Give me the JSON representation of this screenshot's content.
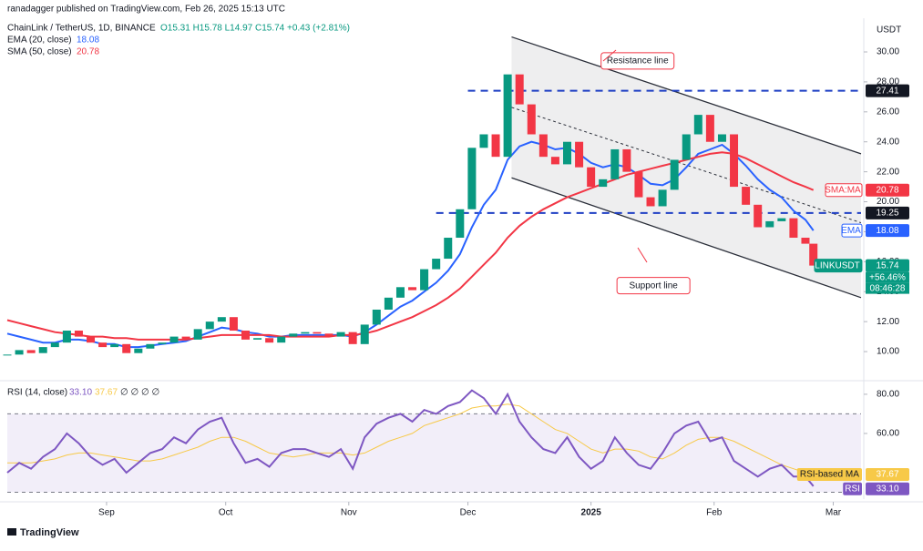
{
  "header": {
    "author": "ranadagger published on TradingView.com, Feb 26, 2025 15:13 UTC",
    "logo": "TradingView"
  },
  "chart_data": [
    {
      "type": "candlestick",
      "symbol": "ChainLink / TetherUS, 1D, BINANCE",
      "ohlc_text": "O15.31 H15.78 L14.97 C15.74 +0.43 (+2.81%)",
      "axis_title": "USDT",
      "x": [
        0,
        3,
        6,
        9,
        12,
        15,
        18,
        21,
        24,
        27,
        30,
        33,
        36,
        39,
        42,
        45,
        48,
        51,
        54,
        57,
        60,
        63,
        66,
        69,
        72,
        75,
        78,
        81,
        84,
        87,
        90,
        93,
        96,
        99,
        102,
        105,
        108,
        111,
        114,
        117,
        120,
        123,
        126,
        129,
        132,
        135,
        138,
        141,
        144,
        147,
        150,
        153,
        156,
        159,
        162,
        165,
        168,
        171,
        174,
        177,
        180,
        183,
        186,
        189,
        192,
        195,
        198,
        201,
        203
      ],
      "xlim": [
        0,
        215
      ],
      "xticks": [
        {
          "value": 25,
          "label": "Sep"
        },
        {
          "value": 55,
          "label": "Oct"
        },
        {
          "value": 86,
          "label": "Nov"
        },
        {
          "value": 116,
          "label": "Dec"
        },
        {
          "value": 147,
          "label": "2025"
        },
        {
          "value": 178,
          "label": "Feb"
        },
        {
          "value": 208,
          "label": "Mar"
        }
      ],
      "ylim": [
        8.24,
        32.25
      ],
      "yticks": [
        {
          "value": 10,
          "label": "10.00"
        },
        {
          "value": 12,
          "label": "12.00"
        },
        {
          "value": 14,
          "label": "14.00"
        },
        {
          "value": 16,
          "label": "16.00"
        },
        {
          "value": 18,
          "label": "18.00"
        },
        {
          "value": 20,
          "label": "20.00"
        },
        {
          "value": 22,
          "label": "22.00"
        },
        {
          "value": 24,
          "label": "24.00"
        },
        {
          "value": 26,
          "label": "26.00"
        },
        {
          "value": 28,
          "label": "28.00"
        },
        {
          "value": 30,
          "label": "30.00"
        }
      ],
      "up_color": "#089981",
      "down_color": "#f23645",
      "closes": [
        9.8,
        10.1,
        9.9,
        10.3,
        10.6,
        11.4,
        11.0,
        10.6,
        10.3,
        10.5,
        9.9,
        10.2,
        10.5,
        10.6,
        11.0,
        10.8,
        11.5,
        12.0,
        12.3,
        11.4,
        10.8,
        10.9,
        10.6,
        11.0,
        11.2,
        11.3,
        11.2,
        11.0,
        11.3,
        10.5,
        11.8,
        12.8,
        13.6,
        14.3,
        14.1,
        15.5,
        16.2,
        17.6,
        19.5,
        23.6,
        24.5,
        23.0,
        28.5,
        26.5,
        24.5,
        23.0,
        22.5,
        24.0,
        22.3,
        21.0,
        21.5,
        23.5,
        22.0,
        20.3,
        19.7,
        20.8,
        22.8,
        24.5,
        25.8,
        24.0,
        24.5,
        21.0,
        19.8,
        18.3,
        18.7,
        18.9,
        17.6,
        17.2,
        15.74
      ],
      "series": [
        {
          "name": "EMA (20, close)",
          "color": "#2962ff",
          "values": [
            11.2,
            11.0,
            10.8,
            10.6,
            10.6,
            10.8,
            10.8,
            10.7,
            10.5,
            10.5,
            10.3,
            10.3,
            10.4,
            10.5,
            10.6,
            10.7,
            11.0,
            11.3,
            11.6,
            11.5,
            11.3,
            11.2,
            11.0,
            11.0,
            11.1,
            11.1,
            11.1,
            11.1,
            11.1,
            11.0,
            11.3,
            11.8,
            12.4,
            13.0,
            13.4,
            14.0,
            14.6,
            15.4,
            16.5,
            18.3,
            19.8,
            20.8,
            22.8,
            23.7,
            24.0,
            23.8,
            23.5,
            23.6,
            23.2,
            22.6,
            22.3,
            22.5,
            22.3,
            21.8,
            21.2,
            21.1,
            21.5,
            22.3,
            23.2,
            23.5,
            23.8,
            23.2,
            22.4,
            21.5,
            20.8,
            20.3,
            19.4,
            18.8,
            18.08
          ]
        },
        {
          "name": "SMA (50, close)",
          "color": "#f23645",
          "values": [
            12.1,
            11.9,
            11.7,
            11.5,
            11.3,
            11.2,
            11.1,
            11.0,
            11.0,
            10.9,
            10.9,
            10.8,
            10.8,
            10.8,
            10.8,
            10.8,
            10.9,
            11.0,
            11.1,
            11.1,
            11.1,
            11.1,
            11.1,
            11.0,
            11.0,
            11.0,
            11.0,
            11.0,
            11.1,
            11.1,
            11.2,
            11.4,
            11.7,
            12.0,
            12.3,
            12.7,
            13.1,
            13.6,
            14.2,
            15.0,
            15.8,
            16.6,
            17.6,
            18.4,
            19.0,
            19.5,
            19.9,
            20.3,
            20.6,
            20.9,
            21.2,
            21.5,
            21.8,
            22.0,
            22.2,
            22.4,
            22.6,
            22.8,
            23.0,
            23.2,
            23.3,
            23.2,
            22.9,
            22.5,
            22.1,
            21.7,
            21.3,
            21.0,
            20.78
          ]
        }
      ],
      "legend_values": [
        "18.08",
        "20.78"
      ],
      "levels": [
        {
          "value": 27.41,
          "from": 116,
          "label": "27.41",
          "color": "#1e3fc4"
        },
        {
          "value": 19.25,
          "from": 108,
          "label": "19.25",
          "color": "#1e3fc4"
        }
      ],
      "channel": {
        "x": [
          127,
          215
        ],
        "upper": [
          31.0,
          23.2
        ],
        "middle": [
          26.3,
          18.6
        ],
        "lower": [
          21.6,
          13.6
        ]
      },
      "annotations": [
        {
          "text": "Resistance line",
          "x": 150,
          "y": 29.4
        },
        {
          "text": "Support line",
          "x": 154,
          "y": 14.4
        }
      ],
      "price_tags": [
        {
          "value": 20.78,
          "label": "20.78",
          "tag": "SMA:MA",
          "color": "#f23645"
        },
        {
          "value": 18.08,
          "label": "18.08",
          "tag": "EMA",
          "color": "#2962ff"
        },
        {
          "value": 15.74,
          "label": "15.74",
          "tag": "LINKUSDT",
          "extra": [
            "+56.46%",
            "08:46:28"
          ],
          "color": "#089981"
        }
      ]
    },
    {
      "type": "line",
      "title": "RSI (14, close)",
      "legend_values": [
        "33.10",
        "37.67",
        "∅ ∅ ∅ ∅"
      ],
      "x": [
        0,
        3,
        6,
        9,
        12,
        15,
        18,
        21,
        24,
        27,
        30,
        33,
        36,
        39,
        42,
        45,
        48,
        51,
        54,
        57,
        60,
        63,
        66,
        69,
        72,
        75,
        78,
        81,
        84,
        87,
        90,
        93,
        96,
        99,
        102,
        105,
        108,
        111,
        114,
        117,
        120,
        123,
        126,
        129,
        132,
        135,
        138,
        141,
        144,
        147,
        150,
        153,
        156,
        159,
        162,
        165,
        168,
        171,
        174,
        177,
        180,
        183,
        186,
        189,
        192,
        195,
        198,
        201,
        203
      ],
      "xlim": [
        0,
        215
      ],
      "ylim": [
        26.5,
        86
      ],
      "yticks": [
        {
          "value": 60,
          "label": "60.00"
        },
        {
          "value": 80,
          "label": "80.00"
        }
      ],
      "band": [
        30,
        70
      ],
      "series": [
        {
          "name": "RSI",
          "color": "#7e57c2",
          "values": [
            40,
            45,
            42,
            48,
            52,
            60,
            55,
            48,
            44,
            47,
            40,
            45,
            50,
            52,
            58,
            55,
            62,
            66,
            68,
            55,
            45,
            47,
            43,
            50,
            52,
            52,
            50,
            48,
            52,
            42,
            58,
            65,
            68,
            70,
            66,
            72,
            70,
            74,
            76,
            82,
            78,
            70,
            80,
            66,
            58,
            52,
            50,
            58,
            48,
            42,
            46,
            58,
            50,
            44,
            42,
            50,
            60,
            64,
            66,
            56,
            58,
            46,
            42,
            38,
            42,
            44,
            38,
            38,
            33.1
          ]
        },
        {
          "name": "RSI-based MA",
          "color": "#f7c948",
          "values": [
            45,
            45,
            45,
            46,
            47,
            49,
            50,
            50,
            49,
            48,
            47,
            46,
            46,
            47,
            49,
            51,
            53,
            56,
            58,
            58,
            56,
            53,
            50,
            49,
            48,
            49,
            50,
            50,
            50,
            49,
            50,
            53,
            56,
            58,
            60,
            64,
            66,
            68,
            70,
            73,
            74,
            74,
            75,
            74,
            70,
            66,
            62,
            60,
            56,
            52,
            50,
            52,
            52,
            51,
            48,
            47,
            50,
            54,
            57,
            58,
            58,
            56,
            53,
            50,
            47,
            44,
            42,
            40,
            37.67
          ]
        }
      ],
      "price_tags": [
        {
          "value": 37.67,
          "label": "37.67",
          "tag": "RSI-based MA",
          "color": "#f7c948"
        },
        {
          "value": 33.1,
          "label": "33.10",
          "tag": "RSI",
          "color": "#7e57c2"
        }
      ]
    }
  ]
}
